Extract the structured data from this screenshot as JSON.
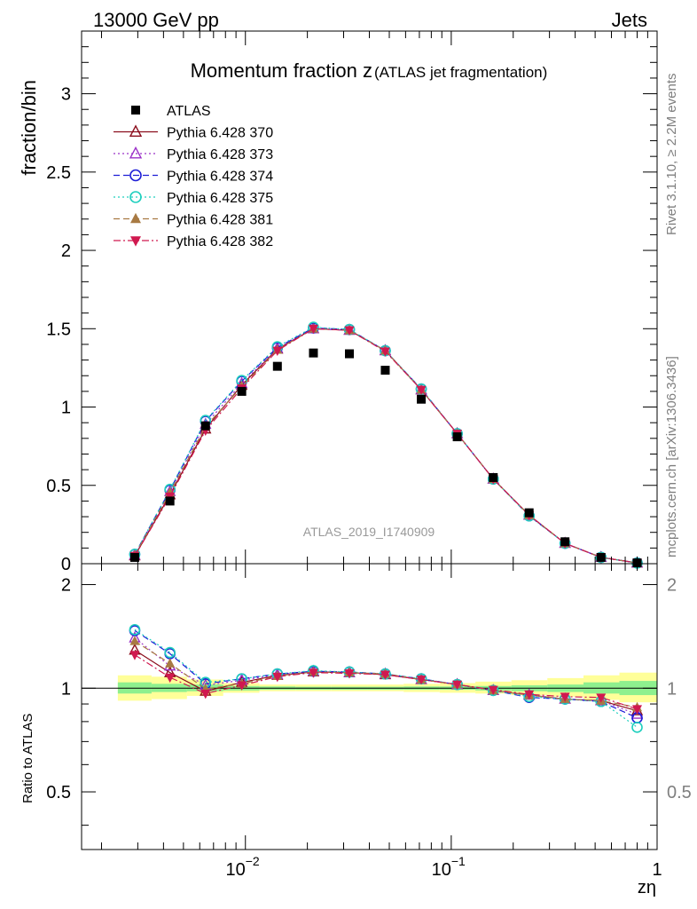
{
  "header": {
    "left": "13000 GeV pp",
    "right": "Jets"
  },
  "side_labels": {
    "top": "Rivet 3.1.10, ≥ 2.2M events",
    "bottom": "mcplots.cern.ch [arXiv:1306.3436]"
  },
  "chart_data": [
    {
      "type": "scatter",
      "title_main": "Momentum fraction z",
      "title_sub": "(ATLAS jet fragmentation)",
      "ylabel": "fraction/bin",
      "xlabel": "",
      "xscale": "log",
      "xlim": [
        0.0016,
        1.0
      ],
      "ylim": [
        0,
        3.4
      ],
      "y_ticks": [
        "0",
        "0.5",
        "1",
        "1.5",
        "2",
        "2.5",
        "3"
      ],
      "y_tick_values": [
        0,
        0.5,
        1,
        1.5,
        2,
        2.5,
        3
      ],
      "watermark": "ATLAS_2019_I1740909",
      "legend_position": "top-left",
      "x": [
        0.0029,
        0.0043,
        0.0064,
        0.0096,
        0.0143,
        0.0214,
        0.032,
        0.0478,
        0.0715,
        0.1069,
        0.16,
        0.239,
        0.357,
        0.534,
        0.8
      ],
      "series": [
        {
          "name": "ATLAS",
          "color": "#000000",
          "marker": "square",
          "line": "none",
          "values": [
            0.04,
            0.4,
            0.88,
            1.1,
            1.26,
            1.345,
            1.34,
            1.235,
            1.05,
            0.81,
            0.55,
            0.325,
            0.14,
            0.04,
            0.005
          ]
        },
        {
          "name": "Pythia 6.428 370",
          "color": "#8b0d1c",
          "marker": "triangle-open",
          "line": "solid",
          "values": [
            0.05,
            0.44,
            0.86,
            1.14,
            1.37,
            1.5,
            1.49,
            1.36,
            1.11,
            0.83,
            0.54,
            0.31,
            0.13,
            0.04,
            0.005
          ]
        },
        {
          "name": "Pythia 6.428 373",
          "color": "#9b30c8",
          "marker": "triangle-open",
          "line": "dotted",
          "values": [
            0.055,
            0.46,
            0.89,
            1.15,
            1.375,
            1.5,
            1.49,
            1.36,
            1.11,
            0.83,
            0.54,
            0.31,
            0.13,
            0.04,
            0.005
          ]
        },
        {
          "name": "Pythia 6.428 374",
          "color": "#1d1dd6",
          "marker": "circle-open",
          "line": "dashed",
          "values": [
            0.06,
            0.47,
            0.91,
            1.165,
            1.38,
            1.505,
            1.495,
            1.36,
            1.115,
            0.83,
            0.54,
            0.305,
            0.13,
            0.04,
            0.005
          ]
        },
        {
          "name": "Pythia 6.428 375",
          "color": "#1fcfbe",
          "marker": "circle-open",
          "line": "dotted",
          "values": [
            0.06,
            0.475,
            0.915,
            1.17,
            1.385,
            1.51,
            1.495,
            1.36,
            1.115,
            0.83,
            0.54,
            0.305,
            0.13,
            0.04,
            0.004
          ]
        },
        {
          "name": "Pythia 6.428 381",
          "color": "#a87a43",
          "marker": "triangle-filled",
          "line": "dashed",
          "values": [
            0.055,
            0.455,
            0.875,
            1.13,
            1.365,
            1.5,
            1.49,
            1.36,
            1.11,
            0.83,
            0.54,
            0.31,
            0.13,
            0.04,
            0.005
          ]
        },
        {
          "name": "Pythia 6.428 382",
          "color": "#d0194f",
          "marker": "triangle-down-filled",
          "line": "dashdot",
          "values": [
            0.05,
            0.43,
            0.85,
            1.12,
            1.36,
            1.5,
            1.49,
            1.355,
            1.11,
            0.83,
            0.54,
            0.31,
            0.13,
            0.04,
            0.005
          ]
        }
      ]
    },
    {
      "type": "scatter",
      "ylabel": "Ratio to ATLAS",
      "xlabel": "zη",
      "xscale": "log",
      "xlim": [
        0.0016,
        1.0
      ],
      "ylim": [
        0.34,
        2.3
      ],
      "y_ticks": [
        "0.5",
        "1",
        "2"
      ],
      "y_tick_values": [
        0.5,
        1,
        2
      ],
      "x_ticks": [
        "10",
        "10",
        "1"
      ],
      "x_tick_exponents": [
        "−2",
        "−1",
        ""
      ],
      "x_tick_values": [
        0.01,
        0.1,
        1
      ],
      "band_edges": [
        0.0024,
        0.0035,
        0.0052,
        0.0078,
        0.0117,
        0.0175,
        0.0262,
        0.0392,
        0.0587,
        0.0878,
        0.131,
        0.196,
        0.293,
        0.439,
        0.656,
        1.0
      ],
      "band_inner": [
        [
          0.965,
          1.04
        ],
        [
          0.975,
          1.03
        ],
        [
          0.98,
          1.025
        ],
        [
          0.985,
          1.015
        ],
        [
          0.99,
          1.012
        ],
        [
          0.99,
          1.01
        ],
        [
          0.99,
          1.01
        ],
        [
          0.99,
          1.01
        ],
        [
          0.99,
          1.012
        ],
        [
          0.99,
          1.012
        ],
        [
          0.985,
          1.015
        ],
        [
          0.98,
          1.02
        ],
        [
          0.975,
          1.025
        ],
        [
          0.965,
          1.04
        ],
        [
          0.955,
          1.05
        ]
      ],
      "band_outer": [
        [
          0.92,
          1.09
        ],
        [
          0.93,
          1.08
        ],
        [
          0.95,
          1.06
        ],
        [
          0.97,
          1.035
        ],
        [
          0.98,
          1.025
        ],
        [
          0.98,
          1.025
        ],
        [
          0.98,
          1.025
        ],
        [
          0.98,
          1.025
        ],
        [
          0.975,
          1.03
        ],
        [
          0.97,
          1.035
        ],
        [
          0.965,
          1.045
        ],
        [
          0.955,
          1.055
        ],
        [
          0.945,
          1.07
        ],
        [
          0.925,
          1.09
        ],
        [
          0.91,
          1.11
        ]
      ],
      "series": [
        {
          "name": "Pythia 6.428 370",
          "color": "#8b0d1c",
          "marker": "triangle-open",
          "line": "solid",
          "values": [
            1.29,
            1.11,
            0.98,
            1.04,
            1.09,
            1.115,
            1.11,
            1.095,
            1.06,
            1.025,
            0.985,
            0.955,
            0.93,
            0.92,
            0.86
          ]
        },
        {
          "name": "Pythia 6.428 373",
          "color": "#9b30c8",
          "marker": "triangle-open",
          "line": "dotted",
          "values": [
            1.4,
            1.16,
            1.02,
            1.055,
            1.095,
            1.12,
            1.11,
            1.1,
            1.06,
            1.025,
            0.985,
            0.955,
            0.93,
            0.92,
            0.84
          ]
        },
        {
          "name": "Pythia 6.428 374",
          "color": "#1d1dd6",
          "marker": "circle-open",
          "line": "dashed",
          "values": [
            1.47,
            1.26,
            1.03,
            1.065,
            1.1,
            1.12,
            1.115,
            1.1,
            1.065,
            1.025,
            0.985,
            0.94,
            0.93,
            0.915,
            0.82
          ]
        },
        {
          "name": "Pythia 6.428 375",
          "color": "#1fcfbe",
          "marker": "circle-open",
          "line": "dotted",
          "values": [
            1.48,
            1.27,
            1.04,
            1.065,
            1.1,
            1.125,
            1.115,
            1.1,
            1.065,
            1.025,
            0.985,
            0.945,
            0.93,
            0.915,
            0.77
          ]
        },
        {
          "name": "Pythia 6.428 381",
          "color": "#a87a43",
          "marker": "triangle-filled",
          "line": "dashed",
          "values": [
            1.37,
            1.18,
            0.995,
            1.03,
            1.085,
            1.115,
            1.11,
            1.1,
            1.06,
            1.025,
            0.985,
            0.955,
            0.93,
            0.92,
            0.88
          ]
        },
        {
          "name": "Pythia 6.428 382",
          "color": "#d0194f",
          "marker": "triangle-down-filled",
          "line": "dashdot",
          "values": [
            1.25,
            1.075,
            0.965,
            1.02,
            1.08,
            1.11,
            1.105,
            1.095,
            1.06,
            1.025,
            0.99,
            0.96,
            0.945,
            0.94,
            0.87
          ]
        }
      ]
    }
  ]
}
